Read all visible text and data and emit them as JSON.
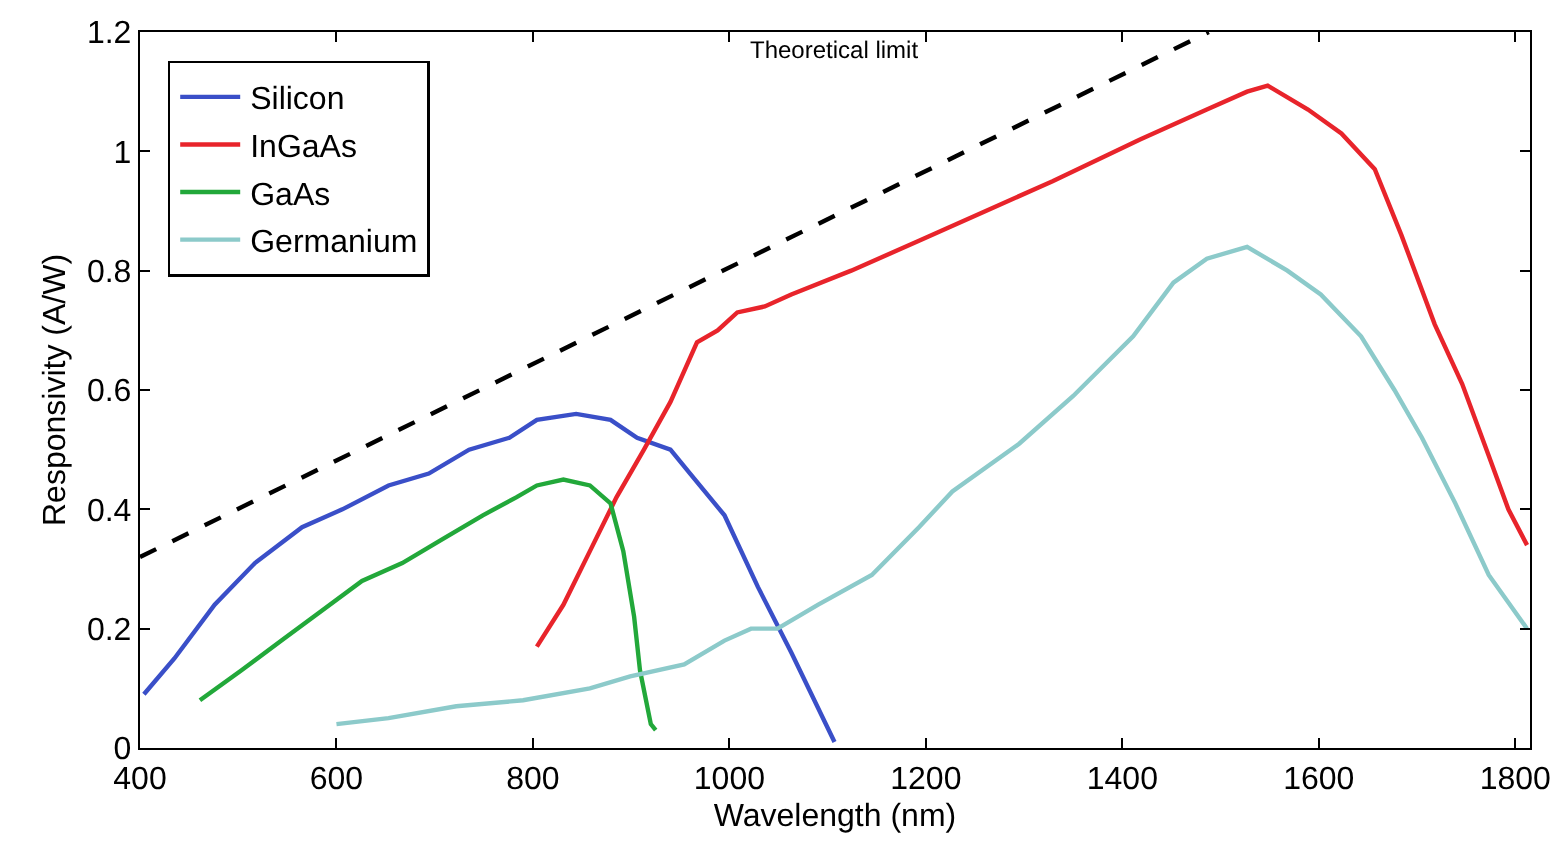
{
  "chart_data": {
    "type": "line",
    "xlabel": "Wavelength (nm)",
    "ylabel": "Responsivity (A/W)",
    "xlim": [
      400,
      1815
    ],
    "ylim": [
      0,
      1.2
    ],
    "xticks": [
      400,
      600,
      800,
      1000,
      1200,
      1400,
      1600,
      1800
    ],
    "yticks": [
      0,
      0.2,
      0.4,
      0.6,
      0.8,
      1,
      1.2
    ],
    "legend": "top left",
    "marker": "none",
    "annotations": [
      "Theoretical limit"
    ],
    "series": [
      {
        "name": "Silicon",
        "color": "#3a4fc8",
        "x": [
          404,
          435,
          476,
          517,
          565,
          606,
          653,
          694,
          735,
          776,
          804,
          844,
          879,
          906,
          940,
          960,
          995,
          1029,
          1063,
          1107
        ],
        "values": [
          0.09,
          0.15,
          0.24,
          0.31,
          0.37,
          0.4,
          0.44,
          0.46,
          0.5,
          0.52,
          0.55,
          0.56,
          0.55,
          0.52,
          0.5,
          0.46,
          0.39,
          0.27,
          0.16,
          0.01
        ]
      },
      {
        "name": "InGaAs",
        "color": "#e8242b",
        "x": [
          804,
          831,
          858,
          885,
          913,
          940,
          967,
          988,
          1008,
          1036,
          1063,
          1124,
          1193,
          1261,
          1329,
          1418,
          1486,
          1527,
          1548,
          1589,
          1623,
          1657,
          1684,
          1718,
          1746,
          1773,
          1793,
          1812
        ],
        "values": [
          0.17,
          0.24,
          0.33,
          0.42,
          0.5,
          0.58,
          0.68,
          0.7,
          0.73,
          0.74,
          0.76,
          0.8,
          0.85,
          0.9,
          0.95,
          1.02,
          1.07,
          1.1,
          1.11,
          1.07,
          1.03,
          0.97,
          0.86,
          0.71,
          0.61,
          0.49,
          0.4,
          0.34
        ]
      },
      {
        "name": "GaAs",
        "color": "#22a83a",
        "x": [
          461,
          503,
          544,
          585,
          626,
          667,
          708,
          749,
          783,
          804,
          831,
          858,
          879,
          892,
          903,
          909,
          920,
          925
        ],
        "values": [
          0.08,
          0.13,
          0.18,
          0.23,
          0.28,
          0.31,
          0.35,
          0.39,
          0.42,
          0.44,
          0.45,
          0.44,
          0.41,
          0.33,
          0.22,
          0.13,
          0.04,
          0.03
        ]
      },
      {
        "name": "Germanium",
        "color": "#8ccaca",
        "x": [
          600,
          653,
          722,
          790,
          858,
          899,
          954,
          995,
          1022,
          1049,
          1090,
          1145,
          1193,
          1227,
          1295,
          1350,
          1411,
          1452,
          1486,
          1527,
          1568,
          1602,
          1643,
          1677,
          1705,
          1739,
          1773,
          1812
        ],
        "values": [
          0.04,
          0.05,
          0.07,
          0.08,
          0.1,
          0.12,
          0.14,
          0.18,
          0.2,
          0.2,
          0.24,
          0.29,
          0.37,
          0.43,
          0.51,
          0.59,
          0.69,
          0.78,
          0.82,
          0.84,
          0.8,
          0.76,
          0.69,
          0.6,
          0.52,
          0.41,
          0.29,
          0.2
        ]
      },
      {
        "color": "#000000",
        "line_style": "dashed",
        "x": [
          400,
          1488
        ],
        "values": [
          0.32,
          1.2
        ]
      }
    ]
  }
}
